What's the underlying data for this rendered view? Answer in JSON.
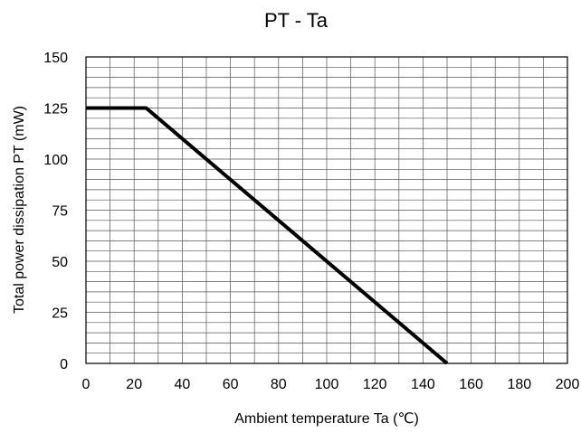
{
  "chart_data": {
    "type": "line",
    "title": "PT - Ta",
    "xlabel": "Ambient temperature Ta (℃)",
    "ylabel": "Total power dissipation PT (mW)",
    "xlim": [
      0,
      200
    ],
    "ylim": [
      0,
      150
    ],
    "xticks": [
      0,
      20,
      40,
      60,
      80,
      100,
      120,
      140,
      160,
      180,
      200
    ],
    "yticks": [
      0,
      25,
      50,
      75,
      100,
      125,
      150
    ],
    "x_minor_step": 10,
    "y_minor_step": 5,
    "grid": true,
    "line_color": "#000000",
    "series": [
      {
        "x": [
          0,
          25,
          150
        ],
        "y": [
          125,
          125,
          0
        ]
      }
    ]
  }
}
